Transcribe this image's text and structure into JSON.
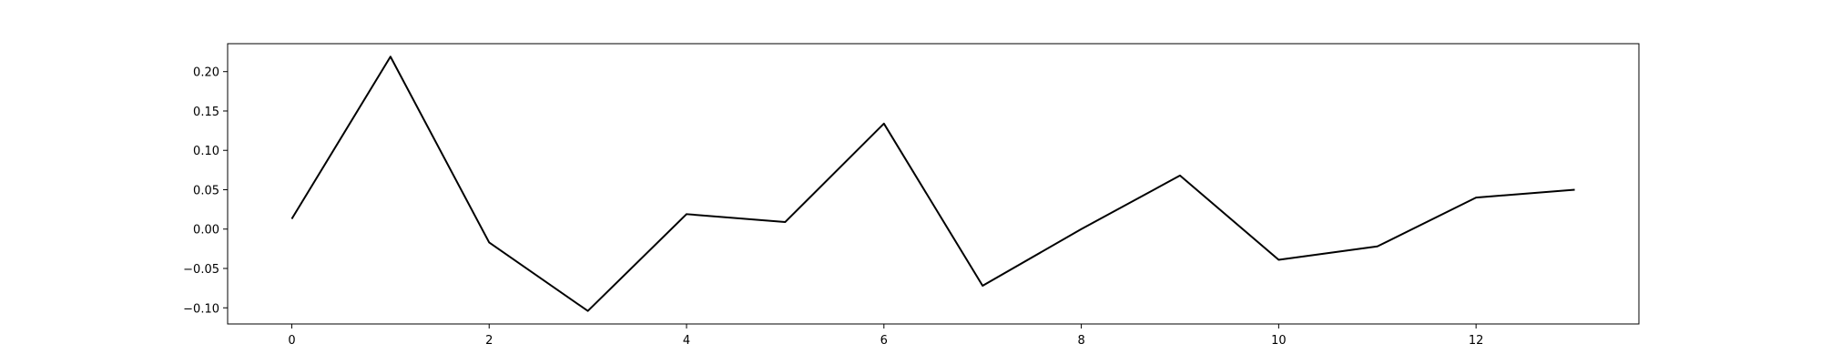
{
  "chart_data": {
    "type": "line",
    "title": "",
    "xlabel": "",
    "ylabel": "",
    "x": [
      0,
      1,
      2,
      3,
      4,
      5,
      6,
      7,
      8,
      9,
      10,
      11,
      12,
      13
    ],
    "series": [
      {
        "values": [
          0.013,
          0.219,
          -0.017,
          -0.104,
          0.019,
          0.009,
          0.134,
          -0.072,
          0.0,
          0.068,
          -0.039,
          -0.022,
          0.04,
          0.05
        ],
        "color": "#000000"
      }
    ],
    "xlim": [
      -0.65,
      13.65
    ],
    "ylim": [
      -0.1205,
      0.2355
    ],
    "xticks": [
      0,
      2,
      4,
      6,
      8,
      10,
      12
    ],
    "xtick_labels": [
      "0",
      "2",
      "4",
      "6",
      "8",
      "10",
      "12"
    ],
    "yticks": [
      -0.1,
      -0.05,
      0.0,
      0.05,
      0.1,
      0.15,
      0.2
    ],
    "ytick_labels": [
      "−0.10",
      "−0.05",
      "0.00",
      "0.05",
      "0.10",
      "0.15",
      "0.20"
    ],
    "grid": false,
    "legend": false
  }
}
